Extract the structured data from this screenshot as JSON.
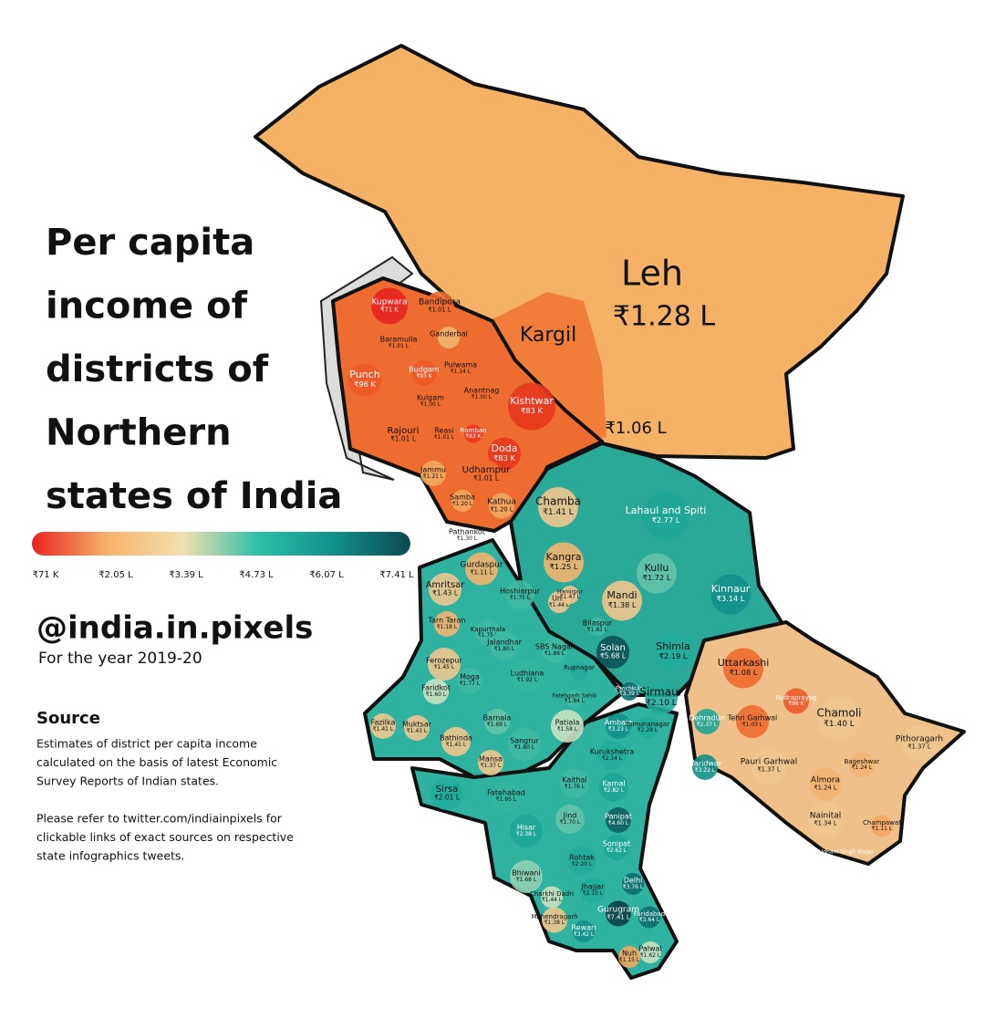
{
  "title_lines": [
    "Per capita",
    "income of",
    "districts of",
    "Northern",
    "states of India"
  ],
  "legend": {
    "ticks": [
      "₹71 K",
      "₹2.05 L",
      "₹3.39 L",
      "₹4.73 L",
      "₹6.07 L",
      "₹7.41 L"
    ],
    "colors": [
      "#e8231f",
      "#f7b36a",
      "#f2e0b0",
      "#2bbfa8",
      "#138f8a",
      "#0b4a50"
    ]
  },
  "handle": "@india.in.pixels",
  "year": "For the year 2019-20",
  "source": {
    "heading": "Source",
    "lines": [
      "Estimates of district per capita income",
      "calculated on the basis of latest Economic",
      "Survey Reports of Indian states.",
      "",
      "Please refer to twitter.com/indiainpixels for",
      "clickable links of exact sources on respective",
      "state infographics tweets."
    ]
  },
  "districts": [
    {
      "name": "Leh",
      "value": "₹1.28 L",
      "color": "#f5b266"
    },
    {
      "name": "Kargil",
      "value": "₹1.06 L",
      "color": "#ee6c30"
    },
    {
      "name": "Kupwara",
      "value": "₹71 K",
      "color": "#e8231f"
    },
    {
      "name": "Bandipora",
      "value": "₹1.01 L",
      "color": "#ee6c30"
    },
    {
      "name": "Baramulla",
      "value": "₹1.01 L",
      "color": "#ee6c30"
    },
    {
      "name": "Ganderbal",
      "color": "#f2b470"
    },
    {
      "name": "Punch",
      "value": "₹96 K",
      "color": "#ec5a2a"
    },
    {
      "name": "Budgam",
      "value": "₹93 K",
      "color": "#ec5a2a"
    },
    {
      "name": "Pulwama",
      "value": "₹1.14 L",
      "color": "#ee6c30"
    },
    {
      "name": "Kulgam",
      "value": "₹1.00 L",
      "color": "#ee6c30"
    },
    {
      "name": "Anantnag",
      "value": "₹1.00 L",
      "color": "#ee6c30"
    },
    {
      "name": "Kishtwar",
      "value": "₹83 K",
      "color": "#e8391f"
    },
    {
      "name": "Rajouri",
      "value": "₹1.01 L",
      "color": "#ee6c30"
    },
    {
      "name": "Reasi",
      "value": "₹1.01 L",
      "color": "#ee6c30"
    },
    {
      "name": "Ramban",
      "value": "₹83 K",
      "color": "#e8391f"
    },
    {
      "name": "Doda",
      "value": "₹83 K",
      "color": "#e8391f"
    },
    {
      "name": "Jammu",
      "value": "₹1.21 L",
      "color": "#f2a860"
    },
    {
      "name": "Udhampur",
      "value": "₹1.01 L",
      "color": "#ee6c30"
    },
    {
      "name": "Samba",
      "value": "₹1.20 L",
      "color": "#f2a860"
    },
    {
      "name": "Kathua",
      "value": "₹1.20 L",
      "color": "#f2a860"
    },
    {
      "name": "Chamba",
      "value": "₹1.41 L",
      "color": "#efc58f"
    },
    {
      "name": "Lahaul and Spiti",
      "value": "₹2.77 L",
      "color": "#1ea596"
    },
    {
      "name": "Pathankot",
      "value": "₹1.30 L",
      "color": "#ffffff"
    },
    {
      "name": "Kangra",
      "value": "₹1.25 L",
      "color": "#f2b470"
    },
    {
      "name": "Kullu",
      "value": "₹1.72 L",
      "color": "#64c3a8"
    },
    {
      "name": "Kinnaur",
      "value": "₹3.14 L",
      "color": "#138f8a"
    },
    {
      "name": "Gurdaspur",
      "value": "₹1.11 L",
      "color": "#f2b470"
    },
    {
      "name": "Amritsar",
      "value": "₹1.43 L",
      "color": "#efc58f"
    },
    {
      "name": "Hoshiarpur",
      "value": "₹1.75 L",
      "color": "#3fb9a3"
    },
    {
      "name": "Una",
      "value": "₹1.44 L",
      "color": "#efc58f"
    },
    {
      "name": "Hamirpur",
      "value": "₹1.47 L",
      "color": "#efc58f"
    },
    {
      "name": "Mandi",
      "value": "₹1.38 L",
      "color": "#efc58f"
    },
    {
      "name": "Bilaspur",
      "value": "₹1.81 L",
      "color": "#3fb9a3"
    },
    {
      "name": "Tarn Taran",
      "value": "₹1.18 L",
      "color": "#f2b470"
    },
    {
      "name": "Kapurthala",
      "value": "₹1.75 L",
      "color": "#3fb9a3"
    },
    {
      "name": "Jalandhar",
      "value": "₹1.80 L",
      "color": "#3fb9a3"
    },
    {
      "name": "SBS Nagar",
      "value": "₹1.86 L",
      "color": "#3fb9a3"
    },
    {
      "name": "Solan",
      "value": "₹5.68 L",
      "color": "#0c4f55"
    },
    {
      "name": "Shimla",
      "value": "₹2.19 L",
      "color": "#22ac9c"
    },
    {
      "name": "Uttarkashi",
      "value": "₹1.08 L",
      "color": "#ee6c30"
    },
    {
      "name": "Ferozepur",
      "value": "₹1.45 L",
      "color": "#efc58f"
    },
    {
      "name": "Ludhiana",
      "value": "₹1.92 L",
      "color": "#34b5a0"
    },
    {
      "name": "Rupnagar",
      "color": "#22ac9c"
    },
    {
      "name": "Faridkot",
      "value": "₹1.60 L",
      "color": "#c8e2c0"
    },
    {
      "name": "Moga",
      "value": "₹1.77 L",
      "color": "#3fb9a3"
    },
    {
      "name": "Panchkula",
      "value": "₹3.39 L",
      "color": "#0f6e70"
    },
    {
      "name": "Sirmaur",
      "value": "₹2.10 L",
      "color": "#22ac9c"
    },
    {
      "name": "Rudraprayag",
      "value": "₹98 K",
      "color": "#ec5a2a"
    },
    {
      "name": "Chamoli",
      "value": "₹1.40 L",
      "color": "#efc58f"
    },
    {
      "name": "Dehradun",
      "value": "₹2.37 L",
      "color": "#1ea596"
    },
    {
      "name": "Tehri Garhwal",
      "value": "₹1.03 L",
      "color": "#ee6c30"
    },
    {
      "name": "Fatehgarh Sahib",
      "value": "₹1.84 L",
      "color": "#3fb9a3"
    },
    {
      "name": "Barnala",
      "value": "₹1.69 L",
      "color": "#64c3a8"
    },
    {
      "name": "Patiala",
      "value": "₹1.58 L",
      "color": "#c8e2c0"
    },
    {
      "name": "Ambala",
      "value": "₹3.23 L",
      "color": "#138f8a"
    },
    {
      "name": "Yamunanagar",
      "value": "₹2.29 L",
      "color": "#22ac9c"
    },
    {
      "name": "Fazilka",
      "value": "₹1.41 L",
      "color": "#efc58f"
    },
    {
      "name": "Muktsar",
      "value": "₹1.43 L",
      "color": "#efc58f"
    },
    {
      "name": "Bathinda",
      "value": "₹1.41 L",
      "color": "#efc58f"
    },
    {
      "name": "Sangrur",
      "value": "₹1.80 L",
      "color": "#3fb9a3"
    },
    {
      "name": "Pithoragarh",
      "value": "₹1.37 L",
      "color": "#efc58f"
    },
    {
      "name": "Kurukshetra",
      "value": "₹2.14 L",
      "color": "#22ac9c"
    },
    {
      "name": "Mansa",
      "value": "₹1.37 L",
      "color": "#efc58f"
    },
    {
      "name": "Haridwar",
      "value": "₹3.22 L",
      "color": "#138f8a"
    },
    {
      "name": "Pauri Garhwal",
      "value": "₹1.37 L",
      "color": "#efc58f"
    },
    {
      "name": "Bageshwar",
      "value": "₹1.24 L",
      "color": "#f2b470"
    },
    {
      "name": "Kaithal",
      "value": "₹1.76 L",
      "color": "#3fb9a3"
    },
    {
      "name": "Karnal",
      "value": "₹2.82 L",
      "color": "#1ea596"
    },
    {
      "name": "Almora",
      "value": "₹1.24 L",
      "color": "#f2b470"
    },
    {
      "name": "Sirsa",
      "value": "₹2.01 L",
      "color": "#22ac9c"
    },
    {
      "name": "Fatehabad",
      "value": "₹1.95 L",
      "color": "#34b5a0"
    },
    {
      "name": "Jind",
      "value": "₹1.70 L",
      "color": "#64c3a8"
    },
    {
      "name": "Panipat",
      "value": "₹4.60 L",
      "color": "#0e5f63"
    },
    {
      "name": "Nainital",
      "value": "₹1.34 L",
      "color": "#efc58f"
    },
    {
      "name": "Champawat",
      "value": "₹1.11 L",
      "color": "#f2a860"
    },
    {
      "name": "Hisar",
      "value": "₹2.38 L",
      "color": "#1ea596"
    },
    {
      "name": "Sonipat",
      "value": "₹2.62 L",
      "color": "#1ea596"
    },
    {
      "name": "Udham Singh Nagar",
      "color": "#1ea596"
    },
    {
      "name": "Rohtak",
      "value": "₹2.20 L",
      "color": "#22ac9c"
    },
    {
      "name": "Bhiwani",
      "value": "₹1.68 L",
      "color": "#8fd0b4"
    },
    {
      "name": "Delhi",
      "value": "₹3.76 L",
      "color": "#0f6e70"
    },
    {
      "name": "Jhajjar",
      "value": "₹2.10 L",
      "color": "#22ac9c"
    },
    {
      "name": "Charkhi Dadri",
      "value": "₹1.44 L",
      "color": "#c8e2c0"
    },
    {
      "name": "Gurugram",
      "value": "₹7.41 L",
      "color": "#0b3f45"
    },
    {
      "name": "Faridabad",
      "value": "₹3.64 L",
      "color": "#0f6e70"
    },
    {
      "name": "Mahendragarh",
      "value": "₹1.38 L",
      "color": "#efc58f"
    },
    {
      "name": "Rewari",
      "value": "₹3.42 L",
      "color": "#138f8a"
    },
    {
      "name": "Nuh",
      "value": "₹1.15 L",
      "color": "#f2a860"
    },
    {
      "name": "Palwal",
      "value": "₹1.62 L",
      "color": "#c8e2c0"
    }
  ]
}
